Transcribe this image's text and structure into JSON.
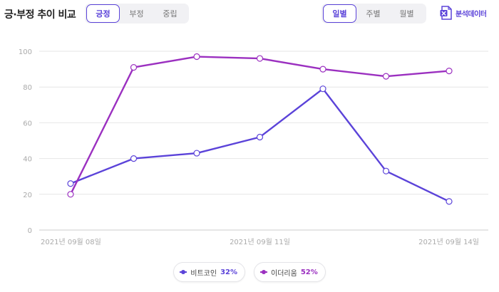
{
  "header": {
    "title": "긍·부정 추이 비교",
    "sentiment_tabs": [
      {
        "label": "긍정",
        "active": true
      },
      {
        "label": "부정",
        "active": false
      },
      {
        "label": "중립",
        "active": false
      }
    ],
    "period_tabs": [
      {
        "label": "일별",
        "active": true
      },
      {
        "label": "주별",
        "active": false
      },
      {
        "label": "월별",
        "active": false
      }
    ],
    "export_label": "분석데이터",
    "export_icon": "excel-icon"
  },
  "colors": {
    "accent": "#5b43d9",
    "series_1": "#5b43d9",
    "series_2": "#9b30c0",
    "grid": "#e6e6e6",
    "tick": "#aaaaaa"
  },
  "chart_data": {
    "type": "line",
    "title": "",
    "xlabel": "",
    "ylabel": "",
    "ylim": [
      0,
      100
    ],
    "yticks": [
      0,
      20,
      40,
      60,
      80,
      100
    ],
    "x": [
      "2021-09-08",
      "2021-09-09",
      "2021-09-10",
      "2021-09-11",
      "2021-09-12",
      "2021-09-13",
      "2021-09-14"
    ],
    "x_tick_labels": [
      {
        "index": 0,
        "label": "2021년 09월 08일"
      },
      {
        "index": 3,
        "label": "2021년 09월 11일"
      },
      {
        "index": 6,
        "label": "2021년 09월 14일"
      }
    ],
    "grid": true,
    "legend_position": "bottom-center",
    "series": [
      {
        "name": "비트코인",
        "percent": "32%",
        "color": "#5b43d9",
        "values": [
          26,
          40,
          43,
          52,
          79,
          33,
          16
        ]
      },
      {
        "name": "이더리움",
        "percent": "52%",
        "color": "#9b30c0",
        "values": [
          20,
          91,
          97,
          96,
          90,
          86,
          89
        ]
      }
    ]
  }
}
